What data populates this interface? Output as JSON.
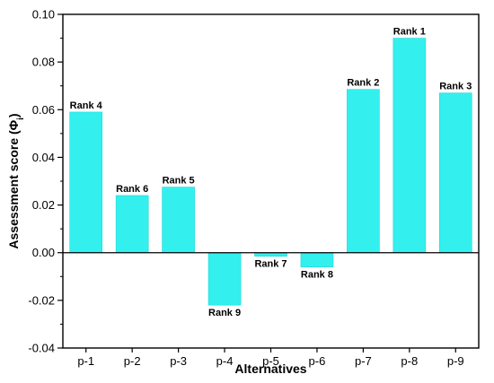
{
  "chart_data": {
    "type": "bar",
    "categories": [
      "p-1",
      "p-2",
      "p-3",
      "p-4",
      "p-5",
      "p-6",
      "p-7",
      "p-8",
      "p-9"
    ],
    "values": [
      0.059,
      0.024,
      0.0275,
      -0.022,
      -0.0015,
      -0.006,
      0.0685,
      0.09,
      0.067
    ],
    "data_labels": [
      "Rank 4",
      "Rank 6",
      "Rank 5",
      "Rank 9",
      "Rank 7",
      "Rank 8",
      "Rank 2",
      "Rank 1",
      "Rank 3"
    ],
    "xlabel": "Alternatives",
    "ylabel": {
      "text": "Assessment score (Φ",
      "subscript": "i",
      "suffix": ")"
    },
    "ylim": [
      -0.04,
      0.1
    ],
    "yticks": [
      "-0.04",
      "-0.02",
      "0.00",
      "0.02",
      "0.04",
      "0.06",
      "0.08",
      "0.10"
    ],
    "grid": false,
    "legend": "none",
    "bar_color": "#33f0ee",
    "bar_stroke": "#1fd6d4"
  }
}
